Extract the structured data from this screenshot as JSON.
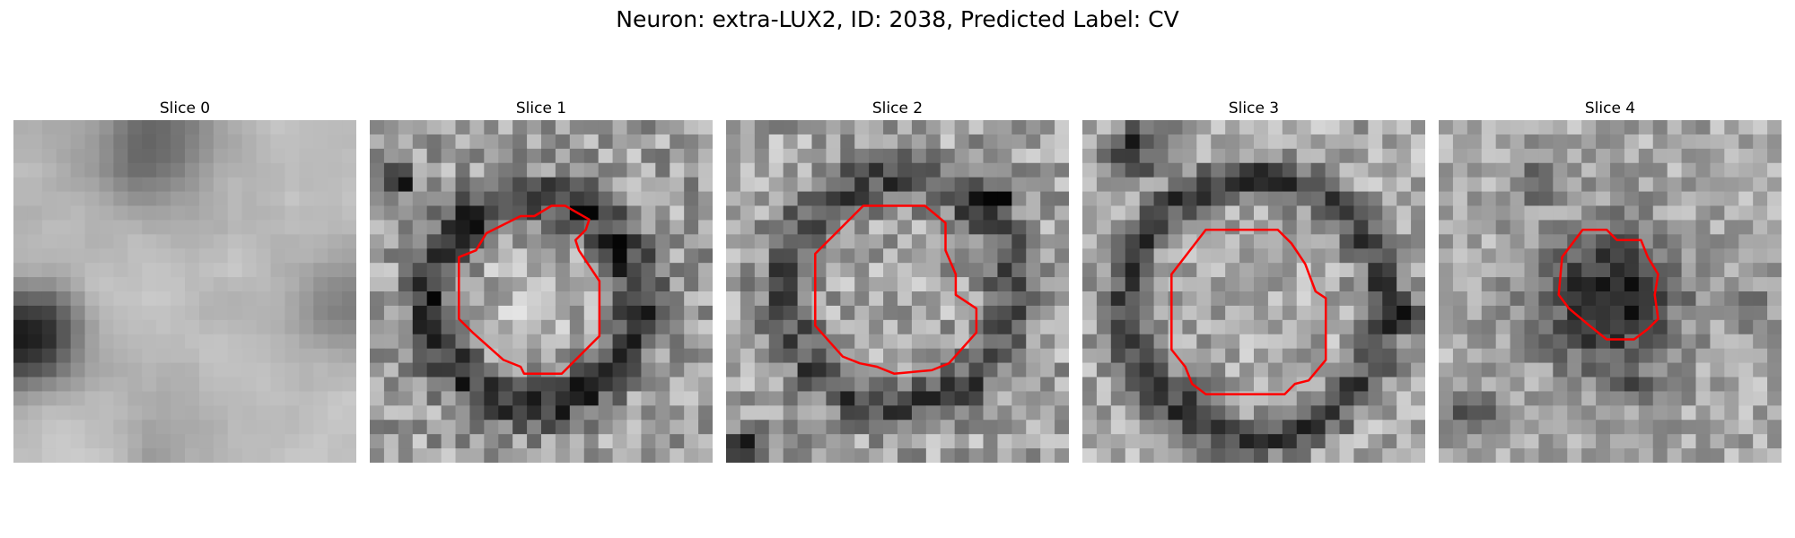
{
  "figure": {
    "title": "Neuron: extra-LUX2, ID: 2038, Predicted Label: CV",
    "colormap": "gray",
    "contour_color": "#ff0000",
    "background": "#ffffff"
  },
  "slices": [
    {
      "title": "Slice 0",
      "has_contour": false
    },
    {
      "title": "Slice 1",
      "has_contour": true
    },
    {
      "title": "Slice 2",
      "has_contour": true
    },
    {
      "title": "Slice 3",
      "has_contour": true
    },
    {
      "title": "Slice 4",
      "has_contour": true
    }
  ]
}
